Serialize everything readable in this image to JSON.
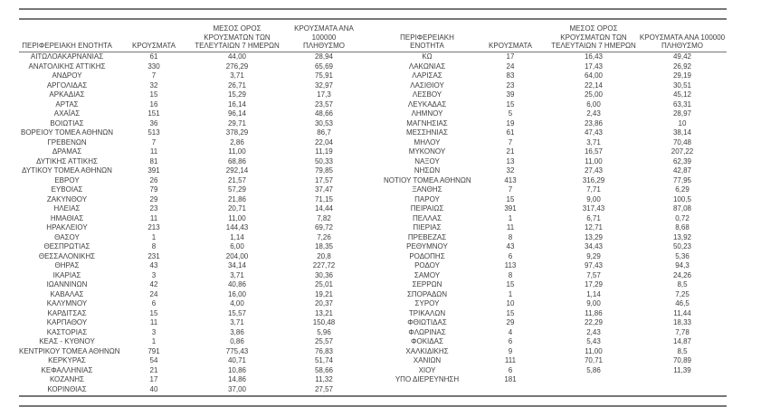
{
  "page": {
    "background": "#ffffff",
    "text_color": "#3e3e3e",
    "rule_color": "#767676"
  },
  "table": {
    "headers": {
      "region": "ΠΕΡΙΦΕΡΕΙΑΚΗ ΕΝΟΤΗΤΑ",
      "cases": "ΚΡΟΥΣΜΑΤΑ",
      "avg7days": "ΜΕΣΟΣ ΟΡΟΣ\nΚΡΟΥΣΜΑΤΩΝ ΤΩΝ\nΤΕΛΕΥΤΑΙΩΝ 7 ΗΜΕΡΩΝ",
      "per100k": "ΚΡΟΥΣΜΑΤΑ ΑΝΑ 100000\nΠΛΗΘΥΣΜΟ"
    },
    "left_rows": [
      [
        "ΑΙΤΩΛΟΑΚΑΡΝΑΝΙΑΣ",
        "61",
        "44,00",
        "28,94"
      ],
      [
        "ΑΝΑΤΟΛΙΚΗΣ ΑΤΤΙΚΗΣ",
        "330",
        "276,29",
        "65,69"
      ],
      [
        "ΑΝΔΡΟΥ",
        "7",
        "3,71",
        "75,91"
      ],
      [
        "ΑΡΓΟΛΙΔΑΣ",
        "32",
        "26,71",
        "32,97"
      ],
      [
        "ΑΡΚΑΔΙΑΣ",
        "15",
        "15,29",
        "17,3"
      ],
      [
        "ΑΡΤΑΣ",
        "16",
        "16,14",
        "23,57"
      ],
      [
        "ΑΧΑΪΑΣ",
        "151",
        "96,14",
        "48,66"
      ],
      [
        "ΒΟΙΩΤΙΑΣ",
        "36",
        "29,71",
        "30,53"
      ],
      [
        "ΒΟΡΕΙΟΥ ΤΟΜΕΑ ΑΘΗΝΩΝ",
        "513",
        "378,29",
        "86,7"
      ],
      [
        "ΓΡΕΒΕΝΩΝ",
        "7",
        "2,86",
        "22,04"
      ],
      [
        "ΔΡΑΜΑΣ",
        "11",
        "11,00",
        "11,19"
      ],
      [
        "ΔΥΤΙΚΗΣ ΑΤΤΙΚΗΣ",
        "81",
        "68,86",
        "50,33"
      ],
      [
        "ΔΥΤΙΚΟΥ ΤΟΜΕΑ ΑΘΗΝΩΝ",
        "391",
        "292,14",
        "79,85"
      ],
      [
        "ΕΒΡΟΥ",
        "26",
        "21,57",
        "17,57"
      ],
      [
        "ΕΥΒΟΙΑΣ",
        "79",
        "57,29",
        "37,47"
      ],
      [
        "ΖΑΚΥΝΘΟΥ",
        "29",
        "21,86",
        "71,15"
      ],
      [
        "ΗΛΕΙΑΣ",
        "23",
        "20,71",
        "14,44"
      ],
      [
        "ΗΜΑΘΙΑΣ",
        "11",
        "11,00",
        "7,82"
      ],
      [
        "ΗΡΑΚΛΕΙΟΥ",
        "213",
        "144,43",
        "69,72"
      ],
      [
        "ΘΑΣΟΥ",
        "1",
        "1,14",
        "7,26"
      ],
      [
        "ΘΕΣΠΡΩΤΙΑΣ",
        "8",
        "6,00",
        "18,35"
      ],
      [
        "ΘΕΣΣΑΛΟΝΙΚΗΣ",
        "231",
        "204,00",
        "20,8"
      ],
      [
        "ΘΗΡΑΣ",
        "43",
        "34,14",
        "227,72"
      ],
      [
        "ΙΚΑΡΙΑΣ",
        "3",
        "3,71",
        "30,36"
      ],
      [
        "ΙΩΑΝΝΙΝΩΝ",
        "42",
        "40,86",
        "25,01"
      ],
      [
        "ΚΑΒΑΛΑΣ",
        "24",
        "16,00",
        "19,21"
      ],
      [
        "ΚΑΛΥΜΝΟΥ",
        "6",
        "4,00",
        "20,37"
      ],
      [
        "ΚΑΡΔΙΤΣΑΣ",
        "15",
        "15,57",
        "13,21"
      ],
      [
        "ΚΑΡΠΑΘΟΥ",
        "11",
        "3,71",
        "150,48"
      ],
      [
        "ΚΑΣΤΟΡΙΑΣ",
        "3",
        "3,86",
        "5,96"
      ],
      [
        "ΚΕΑΣ - ΚΥΘΝΟΥ",
        "1",
        "0,86",
        "25,57"
      ],
      [
        "ΚΕΝΤΡΙΚΟΥ ΤΟΜΕΑ ΑΘΗΝΩΝ",
        "791",
        "775,43",
        "76,83"
      ],
      [
        "ΚΕΡΚΥΡΑΣ",
        "54",
        "40,71",
        "51,74"
      ],
      [
        "ΚΕΦΑΛΛΗΝΙΑΣ",
        "21",
        "10,86",
        "58,66"
      ],
      [
        "ΚΟΖΑΝΗΣ",
        "17",
        "14,86",
        "11,32"
      ],
      [
        "ΚΟΡΙΝΘΙΑΣ",
        "40",
        "37,00",
        "27,57"
      ]
    ],
    "right_rows": [
      [
        "ΚΩ",
        "17",
        "16,43",
        "49,42"
      ],
      [
        "ΛΑΚΩΝΙΑΣ",
        "24",
        "17,43",
        "26,92"
      ],
      [
        "ΛΑΡΙΣΑΣ",
        "83",
        "64,00",
        "29,19"
      ],
      [
        "ΛΑΣΙΘΙΟΥ",
        "23",
        "22,14",
        "30,51"
      ],
      [
        "ΛΕΣΒΟΥ",
        "39",
        "25,00",
        "45,12"
      ],
      [
        "ΛΕΥΚΑΔΑΣ",
        "15",
        "6,00",
        "63,31"
      ],
      [
        "ΛΗΜΝΟΥ",
        "5",
        "2,43",
        "28,97"
      ],
      [
        "ΜΑΓΝΗΣΙΑΣ",
        "19",
        "23,86",
        "10"
      ],
      [
        "ΜΕΣΣΗΝΙΑΣ",
        "61",
        "47,43",
        "38,14"
      ],
      [
        "ΜΗΛΟΥ",
        "7",
        "3,71",
        "70,48"
      ],
      [
        "ΜΥΚΟΝΟΥ",
        "21",
        "16,57",
        "207,22"
      ],
      [
        "ΝΑΞΟΥ",
        "13",
        "11,00",
        "62,39"
      ],
      [
        "ΝΗΣΩΝ",
        "32",
        "27,43",
        "42,87"
      ],
      [
        "ΝΟΤΙΟΥ ΤΟΜΕΑ ΑΘΗΝΩΝ",
        "413",
        "316,29",
        "77,95"
      ],
      [
        "ΞΑΝΘΗΣ",
        "7",
        "7,71",
        "6,29"
      ],
      [
        "ΠΑΡΟΥ",
        "15",
        "9,00",
        "100,5"
      ],
      [
        "ΠΕΙΡΑΙΩΣ",
        "391",
        "317,43",
        "87,08"
      ],
      [
        "ΠΕΛΛΑΣ",
        "1",
        "6,71",
        "0,72"
      ],
      [
        "ΠΙΕΡΙΑΣ",
        "11",
        "12,71",
        "8,68"
      ],
      [
        "ΠΡΕΒΕΖΑΣ",
        "8",
        "13,29",
        "13,92"
      ],
      [
        "ΡΕΘΥΜΝΟΥ",
        "43",
        "34,43",
        "50,23"
      ],
      [
        "ΡΟΔΟΠΗΣ",
        "6",
        "9,29",
        "5,36"
      ],
      [
        "ΡΟΔΟΥ",
        "113",
        "97,43",
        "94,3"
      ],
      [
        "ΣΑΜΟΥ",
        "8",
        "7,57",
        "24,26"
      ],
      [
        "ΣΕΡΡΩΝ",
        "15",
        "17,29",
        "8,5"
      ],
      [
        "ΣΠΟΡΑΔΩΝ",
        "1",
        "1,14",
        "7,25"
      ],
      [
        "ΣΥΡΟΥ",
        "10",
        "9,00",
        "46,5"
      ],
      [
        "ΤΡΙΚΑΛΩΝ",
        "15",
        "11,86",
        "11,44"
      ],
      [
        "ΦΘΙΩΤΙΔΑΣ",
        "29",
        "22,29",
        "18,33"
      ],
      [
        "ΦΛΩΡΙΝΑΣ",
        "4",
        "2,43",
        "7,78"
      ],
      [
        "ΦΟΚΙΔΑΣ",
        "6",
        "5,43",
        "14,87"
      ],
      [
        "ΧΑΛΚΙΔΙΚΗΣ",
        "9",
        "11,00",
        "8,5"
      ],
      [
        "ΧΑΝΙΩΝ",
        "111",
        "70,71",
        "70,89"
      ],
      [
        "ΧΙΟΥ",
        "6",
        "5,86",
        "11,39"
      ],
      [
        "ΥΠΟ ΔΙΕΡΕΥΝΗΣΗ",
        "181",
        "",
        ""
      ]
    ]
  }
}
